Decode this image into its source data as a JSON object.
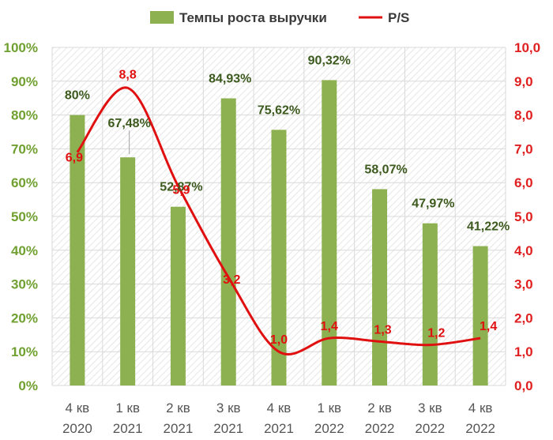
{
  "chart_data": {
    "type": "bar",
    "categories": [
      [
        "4 кв",
        "2020"
      ],
      [
        "1 кв",
        "2021"
      ],
      [
        "2 кв",
        "2021"
      ],
      [
        "3 кв",
        "2021"
      ],
      [
        "4 кв",
        "2021"
      ],
      [
        "1 кв",
        "2022"
      ],
      [
        "2 кв",
        "2022"
      ],
      [
        "3 кв",
        "2022"
      ],
      [
        "4 кв",
        "2022"
      ]
    ],
    "series": [
      {
        "name": "Темпы роста выручки",
        "type": "bar",
        "axis": "left",
        "color": "#8db050",
        "values": [
          80,
          67.48,
          52.87,
          84.93,
          75.62,
          90.32,
          58.07,
          47.97,
          41.22
        ],
        "labels": [
          "80%",
          "67,48%",
          "52,87%",
          "84,93%",
          "75,62%",
          "90,32%",
          "58,07%",
          "47,97%",
          "41,22%"
        ]
      },
      {
        "name": "P/S",
        "type": "line",
        "smooth": true,
        "axis": "right",
        "color": "#e01010",
        "values": [
          6.9,
          8.8,
          5.9,
          3.2,
          1.0,
          1.4,
          1.3,
          1.2,
          1.4
        ],
        "labels": [
          "6,9",
          "8,8",
          "5,9",
          "3,2",
          "1,0",
          "1,4",
          "1,3",
          "1,2",
          "1,4"
        ]
      }
    ],
    "y_left": {
      "ylim": [
        0,
        100
      ],
      "ticks": [
        "0%",
        "10%",
        "20%",
        "30%",
        "40%",
        "50%",
        "60%",
        "70%",
        "80%",
        "90%",
        "100%"
      ],
      "color": "#70a030"
    },
    "y_right": {
      "ylim": [
        0,
        10
      ],
      "ticks": [
        "0,0",
        "1,0",
        "2,0",
        "3,0",
        "4,0",
        "5,0",
        "6,0",
        "7,0",
        "8,0",
        "9,0",
        "10,0"
      ],
      "color": "#e02020"
    },
    "legend": {
      "position": "top"
    },
    "grid": true
  }
}
